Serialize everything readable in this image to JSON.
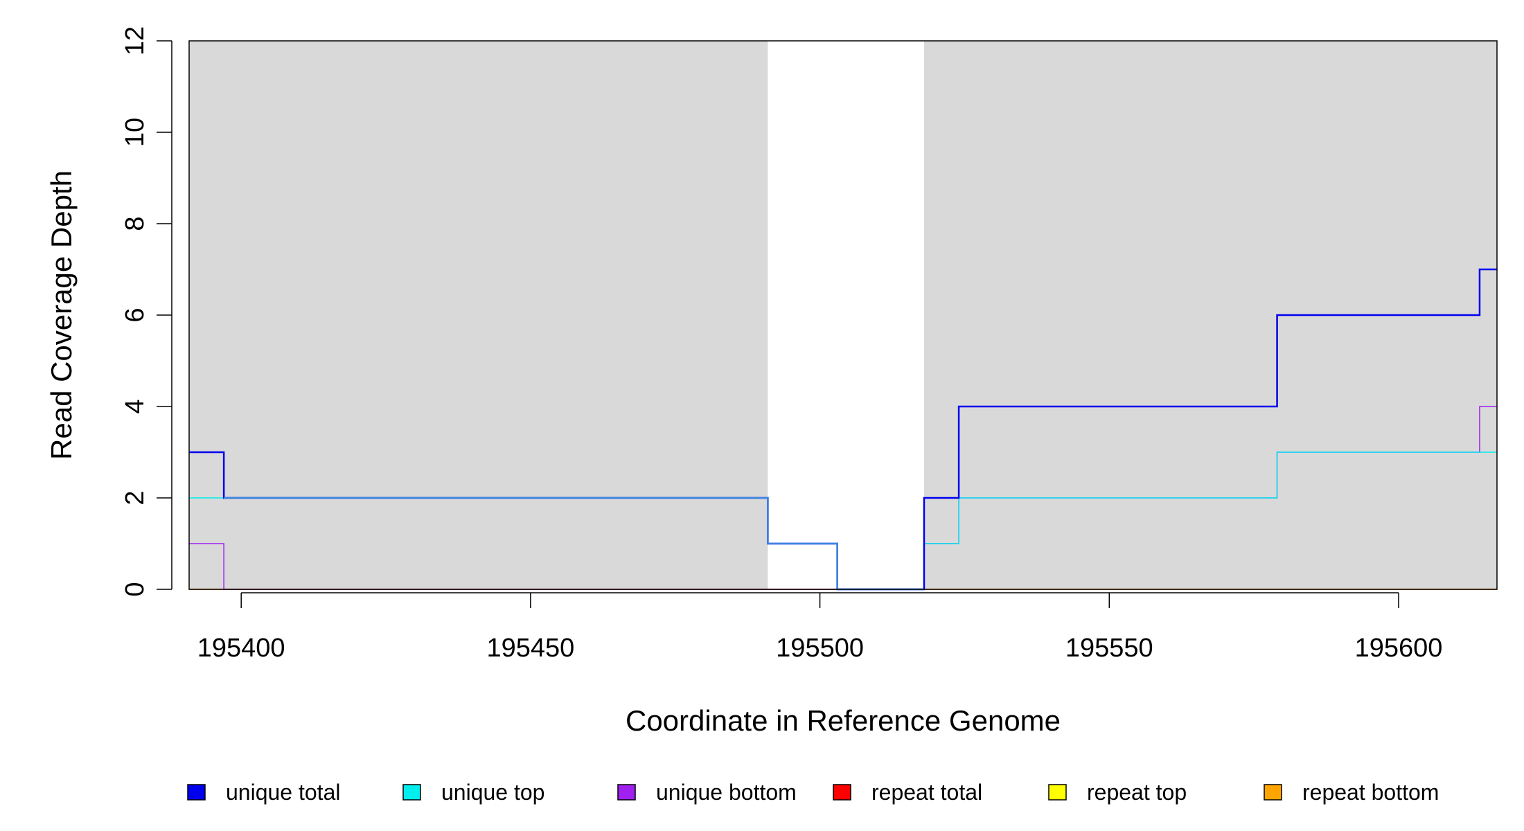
{
  "chart_data": {
    "type": "line",
    "step": true,
    "xlabel": "Coordinate in Reference Genome",
    "ylabel": "Read Coverage Depth",
    "xlim": [
      195391,
      195617
    ],
    "ylim": [
      0,
      12
    ],
    "x_ticks": [
      195400,
      195450,
      195500,
      195550,
      195600
    ],
    "y_ticks": [
      0,
      2,
      4,
      6,
      8,
      10,
      12
    ],
    "shaded_regions": [
      {
        "start": 195391,
        "end": 195491,
        "color": "#d9d9d9"
      },
      {
        "start": 195518,
        "end": 195617,
        "color": "#d9d9d9"
      }
    ],
    "legend_position": "bottom",
    "series": [
      {
        "name": "unique total",
        "color": "#0000ee",
        "steps": [
          [
            195391,
            3
          ],
          [
            195397,
            2
          ],
          [
            195491,
            1
          ],
          [
            195503,
            0
          ],
          [
            195518,
            2
          ],
          [
            195524,
            4
          ],
          [
            195579,
            6
          ],
          [
            195614,
            7
          ],
          [
            195617,
            7
          ]
        ]
      },
      {
        "name": "unique top",
        "color": "#00eeee",
        "steps": [
          [
            195391,
            2
          ],
          [
            195491,
            1
          ],
          [
            195503,
            0
          ],
          [
            195518,
            1
          ],
          [
            195524,
            2
          ],
          [
            195579,
            3
          ],
          [
            195617,
            3
          ]
        ]
      },
      {
        "name": "unique bottom",
        "color": "#a020f0",
        "steps": [
          [
            195391,
            1
          ],
          [
            195397,
            0
          ],
          [
            195518,
            1
          ],
          [
            195524,
            2
          ],
          [
            195579,
            3
          ],
          [
            195614,
            4
          ],
          [
            195617,
            4
          ]
        ]
      },
      {
        "name": "repeat total",
        "color": "#ff0000",
        "steps": [
          [
            195391,
            0
          ],
          [
            195617,
            0
          ]
        ]
      },
      {
        "name": "repeat top",
        "color": "#ffff00",
        "steps": [
          [
            195391,
            0
          ],
          [
            195617,
            0
          ]
        ]
      },
      {
        "name": "repeat bottom",
        "color": "#ffa500",
        "steps": [
          [
            195391,
            0
          ],
          [
            195617,
            0
          ]
        ]
      }
    ]
  }
}
